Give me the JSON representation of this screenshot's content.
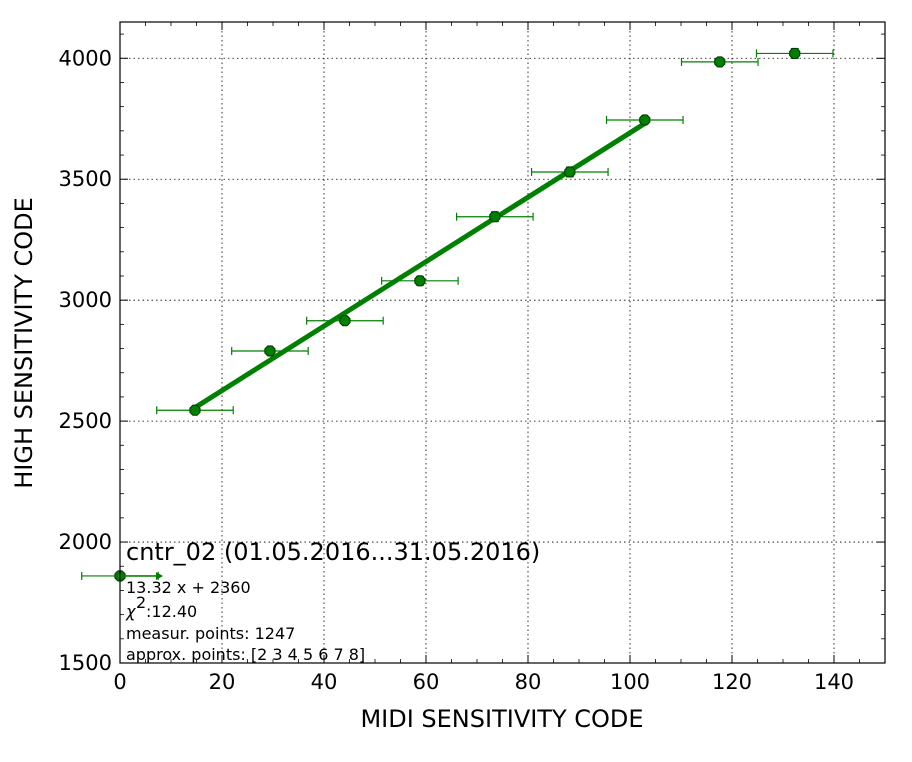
{
  "chart_data": {
    "type": "scatter",
    "title": "cntr_02 (01.05.2016...31.05.2016)",
    "xlabel": "MIDI SENSITIVITY CODE",
    "ylabel": "HIGH SENSITIVITY CODE",
    "xlim": [
      0,
      150
    ],
    "ylim": [
      1500,
      4150
    ],
    "xticks": [
      0,
      20,
      40,
      60,
      80,
      100,
      120,
      140
    ],
    "yticks": [
      1500,
      2000,
      2500,
      3000,
      3500,
      4000
    ],
    "grid": true,
    "colors": {
      "series": "#008000",
      "marker_edge": "#003300",
      "line": "#008000"
    },
    "series": [
      {
        "type": "errorbar",
        "x": [
          0,
          14.7,
          29.4,
          44.1,
          58.8,
          73.5,
          88.2,
          102.9,
          117.6,
          132.3
        ],
        "y": [
          1860,
          2545,
          2790,
          2915,
          3080,
          3345,
          3530,
          3745,
          3985,
          4020
        ],
        "xerr": [
          7.5,
          7.5,
          7.5,
          7.5,
          7.5,
          7.5,
          7.5,
          7.5,
          7.5,
          7.5
        ],
        "yerr": [
          0,
          10,
          12,
          15,
          18,
          20,
          20,
          15,
          15,
          20
        ]
      }
    ],
    "fit_line": {
      "slope": 13.32,
      "intercept": 2360,
      "x_range": [
        14.7,
        102.9
      ]
    },
    "annotations": {
      "equation": "13.32 x + 2360",
      "chi2": ":12.40",
      "measur_points": "measur. points: 1247",
      "approx_points": "approx. points: [2 3 4 5 6 7 8]"
    }
  }
}
